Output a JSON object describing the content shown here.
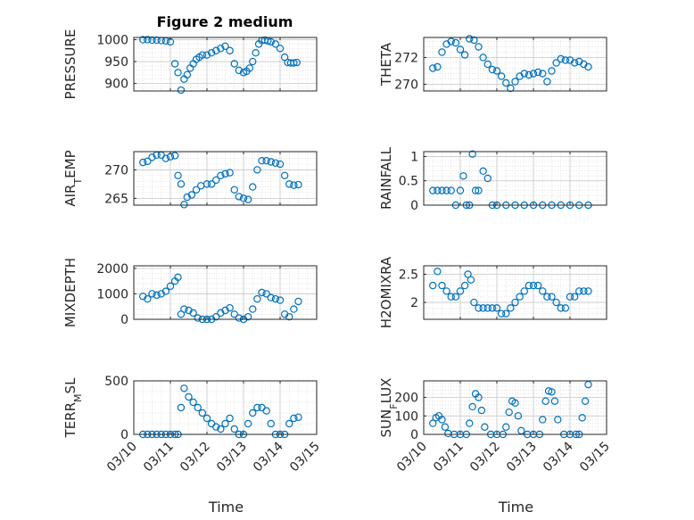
{
  "figure": {
    "title": "Figure 2 medium",
    "xlabel": "Time",
    "marker_color": "#0072BD",
    "x_ticks": [
      "03/10",
      "03/11",
      "03/12",
      "03/13",
      "03/14",
      "03/15"
    ]
  },
  "chart_data": [
    {
      "type": "scatter",
      "title": "Figure 2 medium",
      "xlabel": "",
      "ylabel": "PRESSURE",
      "ylim": [
        883,
        1005
      ],
      "yticks": [
        900,
        950,
        1000
      ],
      "xlim": [
        "03/10",
        "03/15"
      ],
      "grid": "on",
      "x": [
        "03/10 06:00",
        "03/10 09:00",
        "03/10 12:00",
        "03/10 15:00",
        "03/10 18:00",
        "03/10 21:00",
        "03/11 00:00",
        "03/11 03:00",
        "03/11 05:00",
        "03/11 07:00",
        "03/11 09:00",
        "03/11 11:00",
        "03/11 13:00",
        "03/11 15:00",
        "03/11 17:00",
        "03/11 19:00",
        "03/11 21:00",
        "03/12 00:00",
        "03/12 03:00",
        "03/12 06:00",
        "03/12 09:00",
        "03/12 12:00",
        "03/12 15:00",
        "03/12 18:00",
        "03/12 21:00",
        "03/13 00:00",
        "03/13 02:00",
        "03/13 04:00",
        "03/13 06:00",
        "03/13 08:00",
        "03/13 10:00",
        "03/13 12:00",
        "03/13 14:00",
        "03/13 16:00",
        "03/13 18:00",
        "03/13 21:00",
        "03/14 00:00",
        "03/14 03:00",
        "03/14 05:00",
        "03/14 07:00",
        "03/14 09:00",
        "03/14 11:00"
      ],
      "values": [
        1000,
        1000,
        999,
        999,
        998,
        997,
        995,
        945,
        925,
        885,
        910,
        920,
        935,
        945,
        955,
        960,
        965,
        965,
        970,
        975,
        980,
        985,
        975,
        945,
        930,
        925,
        928,
        935,
        950,
        970,
        990,
        998,
        999,
        997,
        995,
        990,
        980,
        960,
        948,
        947,
        947,
        948
      ]
    },
    {
      "type": "scatter",
      "title": "",
      "xlabel": "",
      "ylabel": "THETA",
      "ylim": [
        269.5,
        273.5
      ],
      "yticks": [
        270,
        272
      ],
      "xlim": [
        "03/10",
        "03/15"
      ],
      "grid": "on",
      "x": [
        "03/10 06:00",
        "03/10 09:00",
        "03/10 12:00",
        "03/10 15:00",
        "03/10 18:00",
        "03/10 21:00",
        "03/11 00:00",
        "03/11 03:00",
        "03/11 06:00",
        "03/11 09:00",
        "03/11 12:00",
        "03/11 15:00",
        "03/11 18:00",
        "03/11 21:00",
        "03/12 00:00",
        "03/12 03:00",
        "03/12 06:00",
        "03/12 09:00",
        "03/12 12:00",
        "03/12 15:00",
        "03/12 18:00",
        "03/12 21:00",
        "03/13 00:00",
        "03/13 03:00",
        "03/13 06:00",
        "03/13 09:00",
        "03/13 12:00",
        "03/13 15:00",
        "03/13 18:00",
        "03/13 21:00",
        "03/14 00:00",
        "03/14 03:00",
        "03/14 06:00",
        "03/14 09:00",
        "03/14 12:00"
      ],
      "values": [
        271.2,
        271.3,
        272.4,
        273.0,
        273.2,
        273.1,
        272.6,
        272.2,
        273.4,
        273.3,
        272.8,
        272.0,
        271.5,
        271.1,
        271.0,
        270.6,
        270.1,
        269.7,
        270.2,
        270.6,
        270.8,
        270.7,
        270.8,
        270.9,
        270.8,
        270.2,
        271.0,
        271.6,
        271.9,
        271.8,
        271.8,
        271.6,
        271.7,
        271.5,
        271.3
      ]
    },
    {
      "type": "scatter",
      "title": "",
      "xlabel": "",
      "ylabel": "AIR_TEMP",
      "ylim": [
        263.8,
        273.2
      ],
      "yticks": [
        265,
        270
      ],
      "xlim": [
        "03/10",
        "03/15"
      ],
      "grid": "on",
      "x": [
        "03/10 06:00",
        "03/10 09:00",
        "03/10 12:00",
        "03/10 15:00",
        "03/10 18:00",
        "03/10 21:00",
        "03/11 00:00",
        "03/11 03:00",
        "03/11 05:00",
        "03/11 07:00",
        "03/11 09:00",
        "03/11 11:00",
        "03/11 14:00",
        "03/11 17:00",
        "03/11 20:00",
        "03/12 00:00",
        "03/12 03:00",
        "03/12 06:00",
        "03/12 09:00",
        "03/12 12:00",
        "03/12 15:00",
        "03/12 18:00",
        "03/12 21:00",
        "03/13 00:00",
        "03/13 03:00",
        "03/13 06:00",
        "03/13 09:00",
        "03/13 12:00",
        "03/13 15:00",
        "03/13 18:00",
        "03/13 21:00",
        "03/14 00:00",
        "03/14 03:00",
        "03/14 06:00",
        "03/14 09:00",
        "03/14 12:00"
      ],
      "values": [
        271.3,
        271.5,
        272.2,
        272.6,
        272.6,
        272.0,
        272.3,
        272.5,
        269.0,
        267.5,
        263.9,
        265.2,
        265.6,
        266.5,
        267.2,
        267.5,
        267.5,
        268.2,
        269.0,
        269.3,
        269.5,
        266.5,
        265.3,
        265.0,
        264.8,
        267.0,
        270.0,
        271.6,
        271.6,
        271.4,
        271.2,
        271.0,
        269.0,
        267.5,
        267.3,
        267.4
      ]
    },
    {
      "type": "scatter",
      "title": "",
      "xlabel": "",
      "ylabel": "RAINFALL",
      "ylim": [
        0,
        1.1
      ],
      "yticks": [
        0,
        0.5,
        1
      ],
      "xlim": [
        "03/10",
        "03/15"
      ],
      "grid": "on",
      "x": [
        "03/10 06:00",
        "03/10 09:00",
        "03/10 12:00",
        "03/10 15:00",
        "03/10 18:00",
        "03/10 21:00",
        "03/11 00:00",
        "03/11 02:00",
        "03/11 04:00",
        "03/11 06:00",
        "03/11 08:00",
        "03/11 10:00",
        "03/11 12:00",
        "03/11 15:00",
        "03/11 18:00",
        "03/11 21:00",
        "03/12 00:00",
        "03/12 06:00",
        "03/12 12:00",
        "03/12 18:00",
        "03/13 00:00",
        "03/13 06:00",
        "03/13 12:00",
        "03/13 18:00",
        "03/14 00:00",
        "03/14 06:00",
        "03/14 12:00"
      ],
      "values": [
        0.3,
        0.3,
        0.3,
        0.3,
        0.3,
        0,
        0.3,
        0.6,
        0,
        0,
        1.05,
        0.3,
        0.3,
        0.7,
        0.55,
        0,
        0,
        0,
        0,
        0,
        0,
        0,
        0,
        0,
        0,
        0,
        0
      ]
    },
    {
      "type": "scatter",
      "title": "",
      "xlabel": "",
      "ylabel": "MIXDEPTH",
      "ylim": [
        0,
        2100
      ],
      "yticks": [
        0,
        1000,
        2000
      ],
      "xlim": [
        "03/10",
        "03/15"
      ],
      "grid": "on",
      "x": [
        "03/10 06:00",
        "03/10 09:00",
        "03/10 12:00",
        "03/10 15:00",
        "03/10 18:00",
        "03/10 21:00",
        "03/11 00:00",
        "03/11 03:00",
        "03/11 05:00",
        "03/11 07:00",
        "03/11 09:00",
        "03/11 12:00",
        "03/11 15:00",
        "03/11 18:00",
        "03/11 21:00",
        "03/12 00:00",
        "03/12 03:00",
        "03/12 06:00",
        "03/12 09:00",
        "03/12 12:00",
        "03/12 15:00",
        "03/12 18:00",
        "03/12 21:00",
        "03/13 00:00",
        "03/13 03:00",
        "03/13 06:00",
        "03/13 09:00",
        "03/13 12:00",
        "03/13 15:00",
        "03/13 18:00",
        "03/13 21:00",
        "03/14 00:00",
        "03/14 03:00",
        "03/14 06:00",
        "03/14 09:00",
        "03/14 12:00"
      ],
      "values": [
        900,
        800,
        1000,
        950,
        1000,
        1100,
        1300,
        1500,
        1650,
        200,
        400,
        350,
        250,
        50,
        0,
        0,
        0,
        100,
        250,
        350,
        450,
        200,
        50,
        0,
        100,
        400,
        800,
        1050,
        1000,
        850,
        800,
        750,
        200,
        100,
        400,
        700
      ]
    },
    {
      "type": "scatter",
      "title": "",
      "xlabel": "",
      "ylabel": "H2OMIXRA",
      "ylim": [
        1.7,
        2.65
      ],
      "yticks": [
        2,
        2.5
      ],
      "xlim": [
        "03/10",
        "03/15"
      ],
      "grid": "on",
      "x": [
        "03/10 06:00",
        "03/10 09:00",
        "03/10 12:00",
        "03/10 15:00",
        "03/10 18:00",
        "03/10 21:00",
        "03/11 00:00",
        "03/11 03:00",
        "03/11 05:00",
        "03/11 07:00",
        "03/11 09:00",
        "03/11 12:00",
        "03/11 15:00",
        "03/11 18:00",
        "03/11 21:00",
        "03/12 00:00",
        "03/12 03:00",
        "03/12 06:00",
        "03/12 09:00",
        "03/12 12:00",
        "03/12 15:00",
        "03/12 18:00",
        "03/12 21:00",
        "03/13 00:00",
        "03/13 03:00",
        "03/13 06:00",
        "03/13 09:00",
        "03/13 12:00",
        "03/13 15:00",
        "03/13 18:00",
        "03/13 21:00",
        "03/14 00:00",
        "03/14 03:00",
        "03/14 06:00",
        "03/14 09:00",
        "03/14 12:00"
      ],
      "values": [
        2.3,
        2.55,
        2.3,
        2.2,
        2.1,
        2.1,
        2.2,
        2.3,
        2.5,
        2.4,
        2.0,
        1.9,
        1.9,
        1.9,
        1.9,
        1.9,
        1.8,
        1.8,
        1.9,
        2.0,
        2.1,
        2.2,
        2.3,
        2.3,
        2.3,
        2.2,
        2.1,
        2.1,
        2.0,
        1.9,
        1.9,
        2.1,
        2.1,
        2.2,
        2.2,
        2.2
      ]
    },
    {
      "type": "scatter",
      "title": "",
      "xlabel": "Time",
      "ylabel": "TERR_MSL",
      "ylim": [
        0,
        500
      ],
      "yticks": [
        0,
        500
      ],
      "xlim": [
        "03/10",
        "03/15"
      ],
      "xticks": [
        "03/10",
        "03/11",
        "03/12",
        "03/13",
        "03/14",
        "03/15"
      ],
      "grid": "on",
      "x": [
        "03/10 06:00",
        "03/10 09:00",
        "03/10 12:00",
        "03/10 15:00",
        "03/10 18:00",
        "03/10 21:00",
        "03/11 00:00",
        "03/11 03:00",
        "03/11 05:00",
        "03/11 07:00",
        "03/11 09:00",
        "03/11 12:00",
        "03/11 15:00",
        "03/11 18:00",
        "03/11 21:00",
        "03/12 00:00",
        "03/12 03:00",
        "03/12 06:00",
        "03/12 09:00",
        "03/12 12:00",
        "03/12 15:00",
        "03/12 18:00",
        "03/12 21:00",
        "03/13 00:00",
        "03/13 03:00",
        "03/13 06:00",
        "03/13 09:00",
        "03/13 12:00",
        "03/13 15:00",
        "03/13 18:00",
        "03/13 21:00",
        "03/14 00:00",
        "03/14 03:00",
        "03/14 06:00",
        "03/14 09:00",
        "03/14 12:00"
      ],
      "values": [
        0,
        0,
        0,
        0,
        0,
        0,
        0,
        0,
        0,
        250,
        430,
        350,
        300,
        250,
        200,
        150,
        100,
        70,
        50,
        100,
        150,
        50,
        0,
        0,
        100,
        200,
        250,
        250,
        220,
        100,
        0,
        0,
        0,
        100,
        150,
        160
      ]
    },
    {
      "type": "scatter",
      "title": "",
      "xlabel": "Time",
      "ylabel": "SUN_FLUX",
      "ylim": [
        0,
        290
      ],
      "yticks": [
        0,
        100,
        200
      ],
      "xlim": [
        "03/10",
        "03/15"
      ],
      "xticks": [
        "03/10",
        "03/11",
        "03/12",
        "03/13",
        "03/14",
        "03/15"
      ],
      "grid": "on",
      "x": [
        "03/10 06:00",
        "03/10 08:00",
        "03/10 10:00",
        "03/10 12:00",
        "03/10 14:00",
        "03/10 16:00",
        "03/10 20:00",
        "03/11 00:00",
        "03/11 04:00",
        "03/11 06:00",
        "03/11 08:00",
        "03/11 10:00",
        "03/11 12:00",
        "03/11 14:00",
        "03/11 16:00",
        "03/11 20:00",
        "03/12 00:00",
        "03/12 04:00",
        "03/12 06:00",
        "03/12 08:00",
        "03/12 10:00",
        "03/12 12:00",
        "03/12 14:00",
        "03/12 16:00",
        "03/12 20:00",
        "03/13 00:00",
        "03/13 04:00",
        "03/13 06:00",
        "03/13 08:00",
        "03/13 10:00",
        "03/13 12:00",
        "03/13 14:00",
        "03/13 16:00",
        "03/13 20:00",
        "03/14 00:00",
        "03/14 04:00",
        "03/14 06:00",
        "03/14 08:00",
        "03/14 10:00",
        "03/14 12:00"
      ],
      "values": [
        60,
        90,
        100,
        80,
        40,
        5,
        0,
        0,
        0,
        60,
        150,
        220,
        200,
        130,
        40,
        0,
        0,
        0,
        40,
        120,
        180,
        170,
        100,
        20,
        0,
        0,
        0,
        80,
        180,
        235,
        230,
        180,
        80,
        0,
        0,
        0,
        0,
        90,
        180,
        270
      ]
    }
  ]
}
